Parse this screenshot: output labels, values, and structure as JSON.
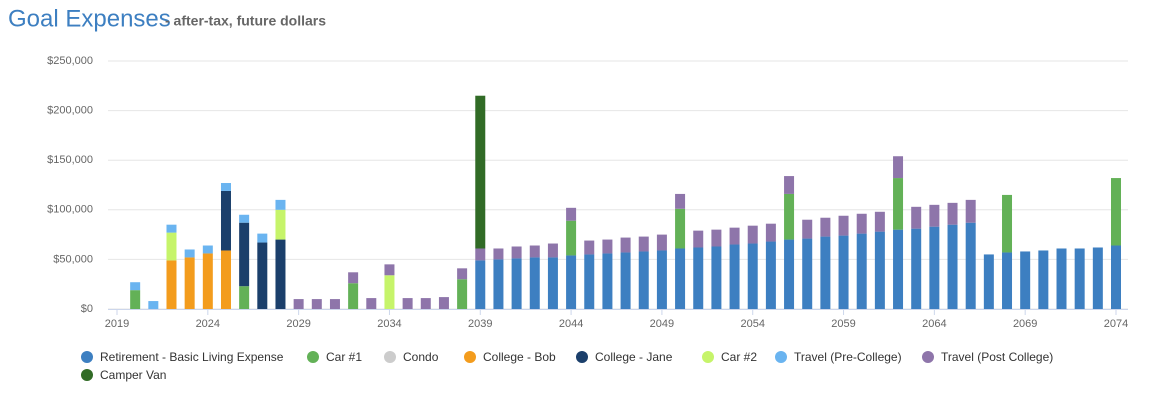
{
  "chart_data": {
    "type": "stacked_bar",
    "title": "Goal Expenses",
    "subtitle": "- after-tax, future dollars",
    "categories": [
      "2019",
      null,
      null,
      null,
      null,
      "2024",
      null,
      null,
      null,
      null,
      "2029",
      null,
      null,
      null,
      null,
      "2034",
      null,
      null,
      null,
      null,
      "2039",
      null,
      null,
      null,
      null,
      "2044",
      null,
      null,
      null,
      null,
      "2049",
      null,
      null,
      null,
      null,
      "2054",
      null,
      null,
      null,
      null,
      "2059",
      null,
      null,
      null,
      null,
      "2064",
      null,
      null,
      null,
      null,
      "2069",
      null,
      null,
      null,
      null,
      "2074"
    ],
    "ylim": [
      0,
      250000
    ],
    "yticks": [
      {
        "value": 0,
        "label": "$0"
      },
      {
        "value": 50000,
        "label": "$50,000"
      },
      {
        "value": 100000,
        "label": "$100,000"
      },
      {
        "value": 150000,
        "label": "$150,000"
      },
      {
        "value": 200000,
        "label": "$200,000"
      },
      {
        "value": 250000,
        "label": "$250,000"
      }
    ],
    "grid": true,
    "legend": "bottom",
    "series": [
      {
        "name": "Retirement - Basic Living Expense",
        "color": "#3d7fc1",
        "values": [
          null,
          null,
          null,
          null,
          null,
          null,
          null,
          null,
          null,
          null,
          null,
          null,
          null,
          null,
          null,
          null,
          null,
          null,
          null,
          null,
          49000,
          50000,
          51000,
          52000,
          52000,
          54000,
          55000,
          56000,
          57000,
          58000,
          59000,
          61000,
          62000,
          63000,
          65000,
          66000,
          68000,
          70000,
          71000,
          73000,
          74000,
          76000,
          78000,
          80000,
          81000,
          83000,
          85000,
          87000,
          55000,
          57000,
          58000,
          59000,
          61000,
          61000,
          62000,
          64000
        ]
      },
      {
        "name": "Car #1",
        "color": "#63b157",
        "values": [
          null,
          19000,
          null,
          null,
          null,
          null,
          null,
          23000,
          null,
          null,
          null,
          null,
          null,
          26000,
          null,
          null,
          null,
          null,
          null,
          30000,
          null,
          null,
          null,
          null,
          null,
          35000,
          null,
          null,
          null,
          null,
          null,
          40000,
          null,
          null,
          null,
          null,
          null,
          46000,
          null,
          null,
          null,
          null,
          null,
          52000,
          null,
          null,
          null,
          null,
          null,
          58000,
          null,
          null,
          null,
          null,
          null,
          68000
        ]
      },
      {
        "name": "Condo",
        "color": "#cccccc",
        "values": [
          null,
          null,
          null,
          null,
          null,
          null,
          null,
          null,
          null,
          null,
          null,
          null,
          null,
          null,
          null,
          null,
          null,
          null,
          null,
          null,
          null,
          null,
          null,
          null,
          null,
          null,
          null,
          null,
          null,
          null,
          null,
          null,
          null,
          null,
          null,
          null,
          null,
          null,
          null,
          null,
          null,
          null,
          null,
          null,
          null,
          null,
          null,
          null,
          null,
          null,
          null,
          null,
          null,
          null,
          null,
          null
        ]
      },
      {
        "name": "College - Bob",
        "color": "#f39c1d",
        "values": [
          null,
          null,
          null,
          49000,
          52000,
          56000,
          59000,
          null,
          null,
          null,
          null,
          null,
          null,
          null,
          null,
          null,
          null,
          null,
          null,
          null,
          null,
          null,
          null,
          null,
          null,
          null,
          null,
          null,
          null,
          null,
          null,
          null,
          null,
          null,
          null,
          null,
          null,
          null,
          null,
          null,
          null,
          null,
          null,
          null,
          null,
          null,
          null,
          null,
          null,
          null,
          null,
          null,
          null,
          null,
          null,
          null
        ]
      },
      {
        "name": "College - Jane",
        "color": "#1b3f6b",
        "values": [
          null,
          null,
          null,
          null,
          null,
          null,
          60000,
          64000,
          67000,
          70000,
          null,
          null,
          null,
          null,
          null,
          null,
          null,
          null,
          null,
          null,
          null,
          null,
          null,
          null,
          null,
          null,
          null,
          null,
          null,
          null,
          null,
          null,
          null,
          null,
          null,
          null,
          null,
          null,
          null,
          null,
          null,
          null,
          null,
          null,
          null,
          null,
          null,
          null,
          null,
          null,
          null,
          null,
          null,
          null,
          null,
          null
        ]
      },
      {
        "name": "Car #2",
        "color": "#c6f46a",
        "values": [
          null,
          null,
          null,
          28000,
          null,
          null,
          null,
          null,
          null,
          30000,
          null,
          null,
          null,
          null,
          null,
          34000,
          null,
          null,
          null,
          null,
          null,
          null,
          null,
          null,
          null,
          null,
          null,
          null,
          null,
          null,
          null,
          null,
          null,
          null,
          null,
          null,
          null,
          null,
          null,
          null,
          null,
          null,
          null,
          null,
          null,
          null,
          null,
          null,
          null,
          null,
          null,
          null,
          null,
          null,
          null,
          null
        ]
      },
      {
        "name": "Travel (Pre-College)",
        "color": "#6ab4f0",
        "values": [
          null,
          8000,
          8000,
          8000,
          8000,
          8000,
          8000,
          8000,
          9000,
          10000,
          null,
          null,
          null,
          null,
          null,
          null,
          null,
          null,
          null,
          null,
          null,
          null,
          null,
          null,
          null,
          null,
          null,
          null,
          null,
          null,
          null,
          null,
          null,
          null,
          null,
          null,
          null,
          null,
          null,
          null,
          null,
          null,
          null,
          null,
          null,
          null,
          null,
          null,
          null,
          null,
          null,
          null,
          null,
          null,
          null,
          null
        ]
      },
      {
        "name": "Travel (Post College)",
        "color": "#8e75aa",
        "values": [
          null,
          null,
          null,
          null,
          null,
          null,
          null,
          null,
          null,
          null,
          10000,
          10000,
          10000,
          11000,
          11000,
          11000,
          11000,
          11000,
          12000,
          11000,
          12000,
          11000,
          12000,
          12000,
          14000,
          13000,
          14000,
          14000,
          15000,
          15000,
          16000,
          15000,
          17000,
          17000,
          17000,
          18000,
          18000,
          18000,
          19000,
          19000,
          20000,
          20000,
          20000,
          22000,
          22000,
          22000,
          22000,
          23000,
          null,
          null,
          null,
          null,
          null,
          null,
          null,
          null
        ]
      },
      {
        "name": "Camper Van",
        "color": "#316b26",
        "values": [
          null,
          null,
          null,
          null,
          null,
          null,
          null,
          null,
          null,
          null,
          null,
          null,
          null,
          null,
          null,
          null,
          null,
          null,
          null,
          null,
          154000,
          null,
          null,
          null,
          null,
          null,
          null,
          null,
          null,
          null,
          null,
          null,
          null,
          null,
          null,
          null,
          null,
          null,
          null,
          null,
          null,
          null,
          null,
          null,
          null,
          null,
          null,
          null,
          null,
          null,
          null,
          null,
          null,
          null,
          null,
          null
        ]
      }
    ]
  }
}
